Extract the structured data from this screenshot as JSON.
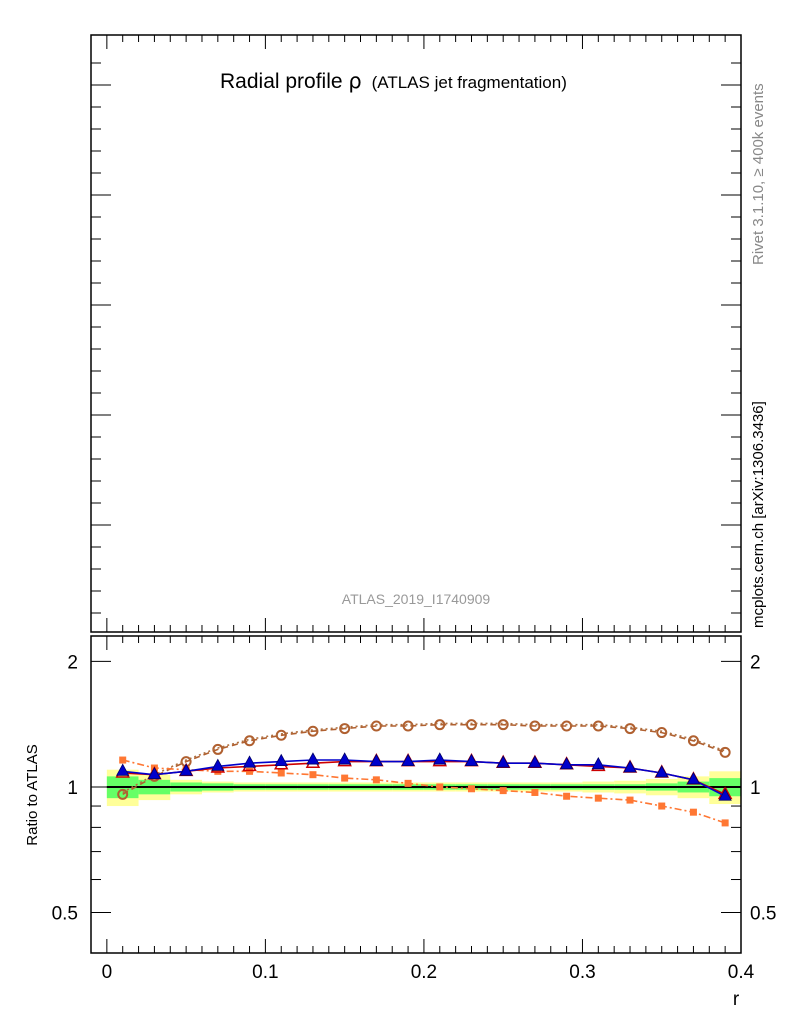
{
  "top_panel": {
    "title_main": "Radial profile",
    "title_symbol": "ρ",
    "title_sub": "(ATLAS jet fragmentation)",
    "analysis_id": "ATLAS_2019_I1740909"
  },
  "side_labels": {
    "rivet": "Rivet 3.1.10, ≥ 400k events",
    "mcplots": "mcplots.cern.ch [arXiv:1306.3436]"
  },
  "ratio_panel": {
    "ylabel": "Ratio to ATLAS",
    "xlabel": "r"
  },
  "chart_data": {
    "type": "line",
    "xlabel": "r",
    "ylabel": "Ratio to ATLAS",
    "xlim": [
      -0.01,
      0.4
    ],
    "ylim": [
      0.4,
      2.3
    ],
    "y_scale": "log",
    "x_ticks": [
      "0",
      "0.1",
      "0.2",
      "0.3",
      "0.4"
    ],
    "y_ticks": [
      "0.5",
      "1",
      "2"
    ],
    "x": [
      0.01,
      0.03,
      0.05,
      0.07,
      0.09,
      0.11,
      0.13,
      0.15,
      0.17,
      0.19,
      0.21,
      0.23,
      0.25,
      0.27,
      0.29,
      0.31,
      0.33,
      0.35,
      0.37,
      0.39
    ],
    "uncertainty_bands": {
      "outer_color": "#ffff99",
      "inner_color": "#66ff66",
      "inner": [
        0.06,
        0.04,
        0.025,
        0.02,
        0.015,
        0.015,
        0.015,
        0.015,
        0.015,
        0.015,
        0.015,
        0.015,
        0.015,
        0.015,
        0.015,
        0.015,
        0.015,
        0.02,
        0.03,
        0.05
      ],
      "outer": [
        0.1,
        0.07,
        0.04,
        0.03,
        0.025,
        0.025,
        0.025,
        0.025,
        0.025,
        0.025,
        0.025,
        0.025,
        0.025,
        0.025,
        0.025,
        0.03,
        0.035,
        0.045,
        0.06,
        0.09
      ]
    },
    "series": [
      {
        "color": "#b06030",
        "line": "dashed",
        "marker": "open-circle",
        "values": [
          0.96,
          1.06,
          1.15,
          1.23,
          1.29,
          1.33,
          1.36,
          1.38,
          1.4,
          1.4,
          1.41,
          1.41,
          1.41,
          1.4,
          1.4,
          1.4,
          1.38,
          1.35,
          1.29,
          1.21
        ]
      },
      {
        "color": "#b07040",
        "line": "dotted",
        "marker": "none",
        "values": [
          0.97,
          1.07,
          1.16,
          1.24,
          1.3,
          1.34,
          1.37,
          1.39,
          1.41,
          1.41,
          1.42,
          1.42,
          1.42,
          1.41,
          1.41,
          1.41,
          1.39,
          1.36,
          1.3,
          1.22
        ]
      },
      {
        "color": "#ff7733",
        "line": "dashdot",
        "marker": "filled-square",
        "values": [
          1.16,
          1.11,
          1.1,
          1.09,
          1.09,
          1.08,
          1.07,
          1.05,
          1.04,
          1.02,
          1.0,
          0.99,
          0.98,
          0.97,
          0.95,
          0.94,
          0.93,
          0.9,
          0.87,
          0.82
        ]
      },
      {
        "color": "#cc0000",
        "line": "solid",
        "marker": "open-triangle",
        "values": [
          1.08,
          1.07,
          1.09,
          1.11,
          1.12,
          1.13,
          1.14,
          1.15,
          1.15,
          1.15,
          1.15,
          1.15,
          1.14,
          1.14,
          1.13,
          1.12,
          1.11,
          1.08,
          1.04,
          0.96
        ]
      },
      {
        "color": "#0000cc",
        "line": "solid",
        "marker": "filled-triangle",
        "values": [
          1.09,
          1.07,
          1.09,
          1.12,
          1.14,
          1.15,
          1.16,
          1.16,
          1.15,
          1.15,
          1.16,
          1.15,
          1.14,
          1.14,
          1.13,
          1.13,
          1.11,
          1.08,
          1.04,
          0.95
        ]
      }
    ],
    "reference_line": {
      "y": 1,
      "color": "#000000"
    }
  }
}
